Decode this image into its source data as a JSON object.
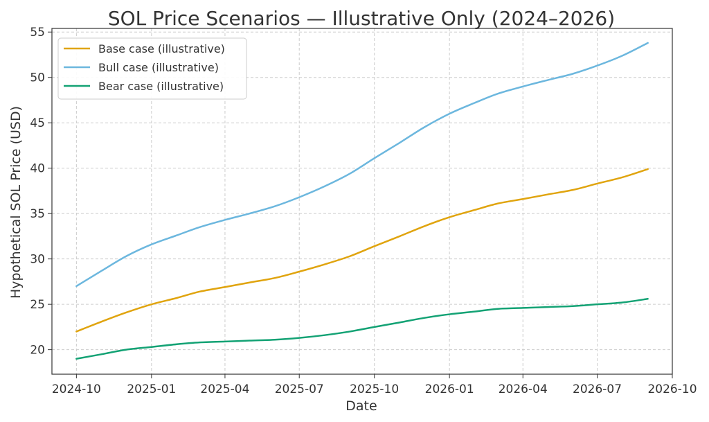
{
  "chart_data": {
    "type": "line",
    "title": "SOL Price Scenarios — Illustrative Only (2024–2026)",
    "xlabel": "Date",
    "ylabel": "Hypothetical SOL Price (USD)",
    "x_ticks": [
      "2024-10",
      "2025-01",
      "2025-04",
      "2025-07",
      "2025-10",
      "2026-01",
      "2026-04",
      "2026-07",
      "2026-10"
    ],
    "y_ticks": [
      20,
      25,
      30,
      35,
      40,
      45,
      50,
      55
    ],
    "xlim": [
      "2024-09-01",
      "2026-10-01"
    ],
    "ylim": [
      17.3,
      55.4
    ],
    "grid": true,
    "legend_position": "top-left",
    "x": [
      "2024-10-01",
      "2024-11-01",
      "2024-12-01",
      "2025-01-01",
      "2025-02-01",
      "2025-03-01",
      "2025-04-01",
      "2025-05-01",
      "2025-06-01",
      "2025-07-01",
      "2025-08-01",
      "2025-09-01",
      "2025-10-01",
      "2025-11-01",
      "2025-12-01",
      "2026-01-01",
      "2026-02-01",
      "2026-03-01",
      "2026-04-01",
      "2026-05-01",
      "2026-06-01",
      "2026-07-01",
      "2026-08-01",
      "2026-09-01"
    ],
    "series": [
      {
        "name": "Base case (illustrative)",
        "color": "#E0A40E",
        "values": [
          22.0,
          23.1,
          24.1,
          25.0,
          25.7,
          26.4,
          26.9,
          27.4,
          27.9,
          28.6,
          29.4,
          30.3,
          31.4,
          32.5,
          33.6,
          34.6,
          35.4,
          36.1,
          36.6,
          37.1,
          37.6,
          38.3,
          39.0,
          39.9
        ]
      },
      {
        "name": "Bull case (illustrative)",
        "color": "#6CB7DE",
        "values": [
          27.0,
          28.7,
          30.3,
          31.6,
          32.6,
          33.5,
          34.3,
          35.0,
          35.8,
          36.8,
          38.0,
          39.4,
          41.1,
          42.8,
          44.5,
          46.0,
          47.2,
          48.2,
          49.0,
          49.7,
          50.4,
          51.3,
          52.4,
          53.8
        ]
      },
      {
        "name": "Bear case (illustrative)",
        "color": "#13A274",
        "values": [
          19.0,
          19.5,
          20.0,
          20.3,
          20.6,
          20.8,
          20.9,
          21.0,
          21.1,
          21.3,
          21.6,
          22.0,
          22.5,
          23.0,
          23.5,
          23.9,
          24.2,
          24.5,
          24.6,
          24.7,
          24.8,
          25.0,
          25.2,
          25.6
        ]
      }
    ]
  }
}
